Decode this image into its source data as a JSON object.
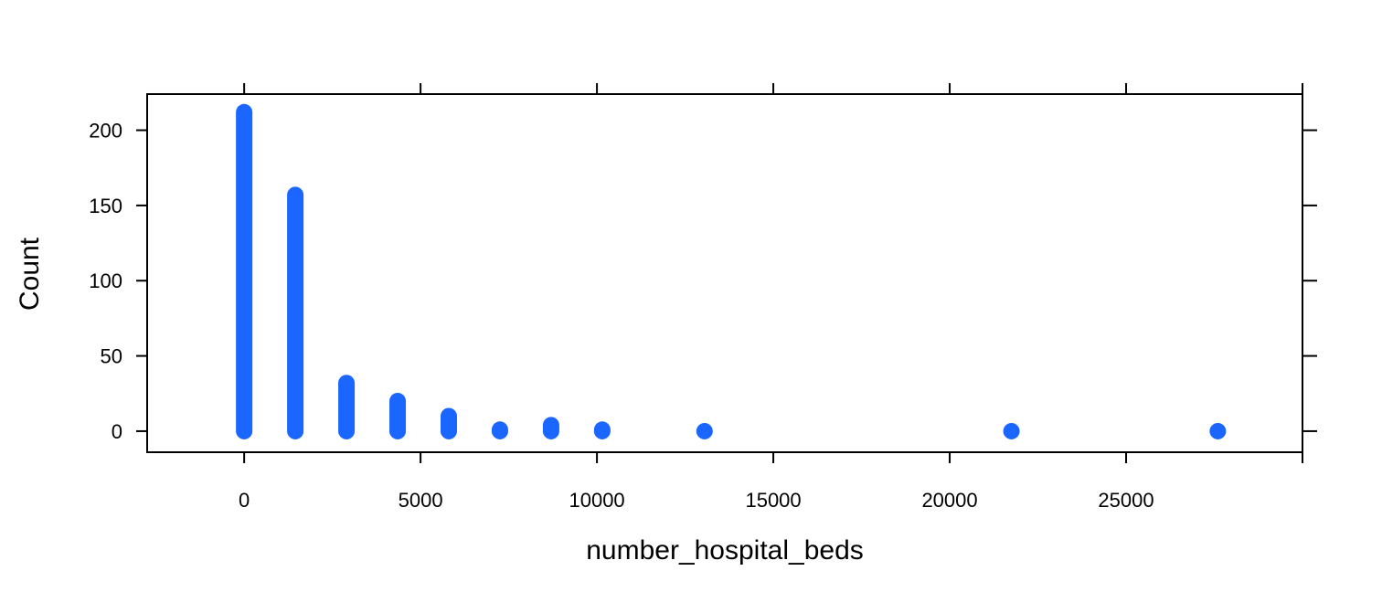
{
  "chart_data": {
    "type": "scatter",
    "title": "",
    "xlabel": "number_hospital_beds",
    "ylabel": "Count",
    "xlim": [
      -2750,
      30000
    ],
    "ylim": [
      -14,
      224
    ],
    "x_ticks": [
      0,
      5000,
      10000,
      15000,
      20000,
      25000
    ],
    "x_tick_labels": [
      "0",
      "5000",
      "10000",
      "15000",
      "20000",
      "25000"
    ],
    "y_ticks": [
      0,
      50,
      100,
      150,
      200
    ],
    "y_tick_labels": [
      "0",
      "50",
      "100",
      "150",
      "200"
    ],
    "grid": false,
    "legend": "none",
    "point_color": "#1a66ff",
    "note_style": "stacked dots from 0 up to each count (lattice dotplot)",
    "series": [
      {
        "name": "",
        "x": [
          0,
          1450,
          2900,
          4350,
          5800,
          7250,
          8700,
          10150,
          13050,
          21750,
          27600
        ],
        "y": [
          212,
          157,
          32,
          20,
          10,
          1,
          4,
          1,
          0,
          0,
          0
        ]
      }
    ]
  }
}
